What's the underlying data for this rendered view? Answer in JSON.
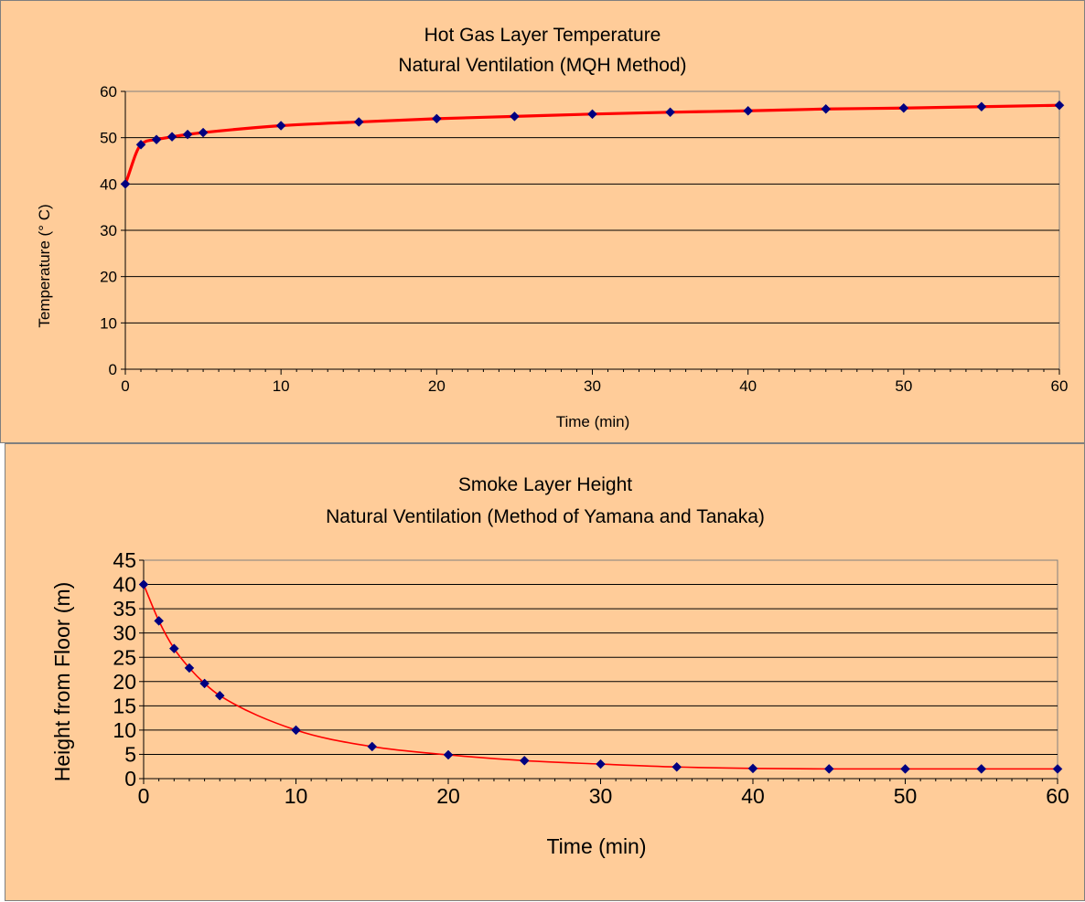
{
  "colors": {
    "panel_bg": "#ffcc99",
    "panel_border": "#7f7f7f",
    "plot_bg": "#ffcc99",
    "gridline": "#000000",
    "line": "#ff0000",
    "marker": "#000080"
  },
  "chart_data": [
    {
      "type": "line",
      "title": "Hot Gas Layer Temperature",
      "subtitle": "Natural Ventilation (MQH Method)",
      "xlabel": "Time (min)",
      "ylabel": "Temperature (° C)",
      "xlim": [
        0,
        60
      ],
      "ylim": [
        0,
        60
      ],
      "xticks": [
        0,
        10,
        20,
        30,
        40,
        50,
        60
      ],
      "yticks": [
        0,
        10,
        20,
        30,
        40,
        50,
        60
      ],
      "grid": "horizontal",
      "marker": "diamond",
      "x": [
        0,
        1,
        2,
        3,
        4,
        5,
        10,
        15,
        20,
        25,
        30,
        35,
        40,
        45,
        50,
        55,
        60
      ],
      "y": [
        40,
        48.5,
        49.6,
        50.2,
        50.7,
        51.1,
        52.6,
        53.4,
        54.1,
        54.6,
        55.1,
        55.5,
        55.8,
        56.2,
        56.4,
        56.7,
        57.0
      ]
    },
    {
      "type": "line",
      "title": "Smoke Layer Height",
      "subtitle": "Natural Ventilation (Method of Yamana and Tanaka)",
      "xlabel": "Time (min)",
      "ylabel": "Height from Floor (m)",
      "xlim": [
        0,
        60
      ],
      "ylim": [
        0,
        45
      ],
      "xticks": [
        0,
        10,
        20,
        30,
        40,
        50,
        60
      ],
      "yticks": [
        0,
        5,
        10,
        15,
        20,
        25,
        30,
        35,
        40,
        45
      ],
      "grid": "horizontal",
      "marker": "diamond",
      "x": [
        0,
        1,
        2,
        3,
        4,
        5,
        10,
        15,
        20,
        25,
        30,
        35,
        40,
        45,
        50,
        55,
        60
      ],
      "y": [
        40,
        32.5,
        26.8,
        22.8,
        19.6,
        17.1,
        10.0,
        6.6,
        4.9,
        3.7,
        3.0,
        2.4,
        2.1,
        2.0,
        2.0,
        2.0,
        2.0
      ]
    }
  ]
}
